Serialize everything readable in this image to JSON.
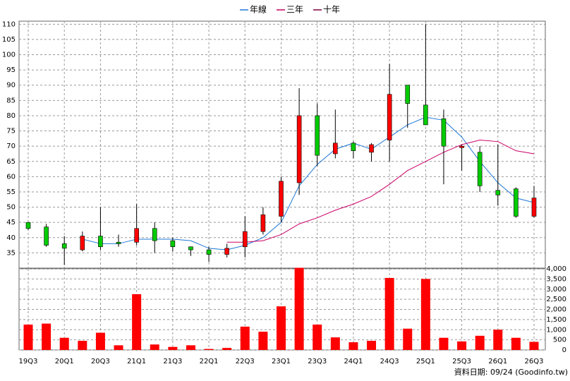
{
  "chart_data": {
    "type": "candlestick",
    "categories": [
      "19Q3",
      null,
      "20Q1",
      null,
      "20Q3",
      null,
      "21Q1",
      null,
      "21Q3",
      null,
      "22Q1",
      null,
      "22Q3",
      null,
      "23Q1",
      null,
      "23Q3",
      null,
      "24Q1",
      null,
      "24Q3",
      null,
      "25Q1",
      null,
      "25Q3",
      null,
      "26Q1",
      null,
      "26Q3"
    ],
    "open": [
      45,
      43.5,
      38,
      36,
      40.5,
      38.5,
      38.5,
      43,
      39,
      37,
      36,
      34.5,
      37,
      42,
      47,
      58,
      80,
      67.5,
      71,
      68,
      72,
      90,
      83.5,
      79,
      69.5,
      68,
      55.5,
      56,
      47
    ],
    "high": [
      45,
      44.5,
      40.5,
      42,
      50,
      41,
      51,
      45,
      40,
      37,
      37,
      38,
      47,
      50,
      60,
      89,
      84,
      82,
      71.5,
      71,
      97,
      90,
      110,
      82,
      70.5,
      70,
      70.5,
      56.5,
      57
    ],
    "low": [
      42.5,
      37,
      31,
      35.5,
      36,
      37,
      37.5,
      35,
      35.5,
      34,
      32,
      33.5,
      33.5,
      41,
      45,
      54,
      63.5,
      66,
      66,
      65,
      65,
      76,
      77,
      57.5,
      62,
      55,
      50.5,
      46.5,
      46.5
    ],
    "close": [
      43,
      37.5,
      36.5,
      40.5,
      37,
      38,
      43,
      39,
      37,
      36,
      34.5,
      36.5,
      42,
      47.5,
      58.5,
      80,
      67,
      71,
      68.5,
      70.5,
      87,
      84,
      77,
      70,
      70,
      57,
      54,
      47,
      53
    ],
    "up_color": "#ff0000",
    "down_color": "#00cc00",
    "series": [
      {
        "name": "年線",
        "color": "#1e78d6",
        "values": [
          null,
          null,
          null,
          39.5,
          38,
          38,
          39.5,
          39.5,
          39.5,
          39,
          36.5,
          36,
          37.5,
          40,
          45,
          57,
          64,
          69,
          71,
          69,
          73,
          77,
          79.5,
          78.5,
          73,
          65,
          58,
          53,
          51.5
        ]
      },
      {
        "name": "三年",
        "color": "#cc0066",
        "values": [
          null,
          null,
          null,
          null,
          null,
          null,
          null,
          null,
          null,
          null,
          null,
          38.5,
          38.5,
          39,
          41,
          44.5,
          46.5,
          49,
          51,
          53.5,
          57.5,
          62,
          65,
          68,
          70.5,
          72,
          71.5,
          68.5,
          67.5
        ]
      },
      {
        "name": "十年",
        "color": "#800040",
        "values": [
          null,
          null,
          null,
          null,
          null,
          null,
          null,
          null,
          null,
          null,
          null,
          null,
          null,
          null,
          null,
          null,
          null,
          null,
          null,
          null,
          null,
          null,
          null,
          null,
          null,
          null,
          null,
          null,
          null
        ]
      }
    ],
    "ylim": [
      30,
      111
    ],
    "yticks": [
      35,
      40,
      45,
      50,
      55,
      60,
      65,
      70,
      75,
      80,
      85,
      90,
      95,
      100,
      105,
      110
    ],
    "volume": [
      1250,
      1300,
      600,
      450,
      850,
      230,
      2750,
      270,
      150,
      230,
      50,
      100,
      1150,
      900,
      2150,
      4050,
      1250,
      620,
      380,
      450,
      3550,
      1050,
      3500,
      600,
      420,
      700,
      1000,
      600,
      400
    ],
    "volume_color": "#ff0000",
    "y2lim": [
      0,
      4000
    ],
    "y2ticks": [
      0,
      500,
      {
        "value": 1000,
        "label": "1,000"
      },
      {
        "value": 1500,
        "label": "1,500"
      },
      {
        "value": 2000,
        "label": "2,000"
      },
      {
        "value": 2500,
        "label": "2,500"
      },
      {
        "value": 3000,
        "label": "3,000"
      },
      {
        "value": 3500,
        "label": "3,500"
      },
      {
        "value": 4000,
        "label": "4,000"
      }
    ],
    "grid": true,
    "footnote": "資料日期: 09/24  (Goodinfo.tw)"
  }
}
